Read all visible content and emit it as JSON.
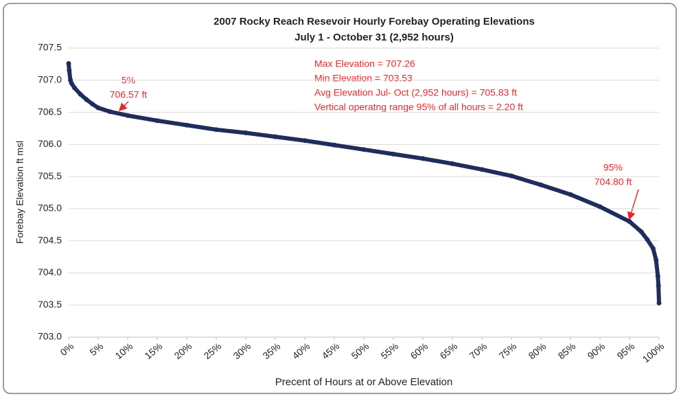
{
  "chart_data": {
    "type": "scatter",
    "title": "2007 Rocky Reach Resevoir Hourly Forebay Operating Elevations",
    "subtitle": "July 1 - October 31 (2,952 hours)",
    "xlabel": "Precent of Hours at or Above Elevation",
    "ylabel": "Forebay Elevation ft msl",
    "x": [
      0,
      0.1,
      0.3,
      0.5,
      1,
      2,
      3,
      4,
      5,
      7,
      10,
      15,
      20,
      25,
      30,
      35,
      40,
      45,
      50,
      55,
      60,
      65,
      70,
      75,
      80,
      85,
      90,
      95,
      97,
      98,
      99,
      99.5,
      99.8,
      99.9,
      100
    ],
    "values": [
      707.26,
      707.15,
      707.0,
      706.95,
      706.88,
      706.78,
      706.7,
      706.63,
      706.57,
      706.51,
      706.45,
      706.37,
      706.3,
      706.23,
      706.18,
      706.12,
      706.06,
      705.99,
      705.92,
      705.85,
      705.78,
      705.7,
      705.61,
      705.51,
      705.37,
      705.22,
      705.03,
      704.8,
      704.64,
      704.52,
      704.38,
      704.2,
      703.95,
      703.8,
      703.53
    ],
    "color": "#1f2d5c",
    "xlim": [
      0,
      100
    ],
    "xticks": [
      {
        "value": 0,
        "label": "0%"
      },
      {
        "value": 5,
        "label": "5%"
      },
      {
        "value": 10,
        "label": "10%"
      },
      {
        "value": 15,
        "label": "15%"
      },
      {
        "value": 20,
        "label": "20%"
      },
      {
        "value": 25,
        "label": "25%"
      },
      {
        "value": 30,
        "label": "30%"
      },
      {
        "value": 35,
        "label": "35%"
      },
      {
        "value": 40,
        "label": "40%"
      },
      {
        "value": 45,
        "label": "45%"
      },
      {
        "value": 50,
        "label": "50%"
      },
      {
        "value": 55,
        "label": "55%"
      },
      {
        "value": 60,
        "label": "60%"
      },
      {
        "value": 65,
        "label": "65%"
      },
      {
        "value": 70,
        "label": "70%"
      },
      {
        "value": 75,
        "label": "75%"
      },
      {
        "value": 80,
        "label": "80%"
      },
      {
        "value": 85,
        "label": "85%"
      },
      {
        "value": 90,
        "label": "90%"
      },
      {
        "value": 95,
        "label": "95%"
      },
      {
        "value": 100,
        "label": "100%"
      }
    ],
    "ylim": [
      703.0,
      707.5
    ],
    "yticks": [
      {
        "value": 703,
        "label": "703.0"
      },
      703.5,
      {
        "value": 704,
        "label": "704.0"
      },
      704.5,
      {
        "value": 705,
        "label": "705.0"
      },
      705.5,
      {
        "value": 706,
        "label": "706.0"
      },
      706.5,
      {
        "value": 707,
        "label": "707.0"
      },
      707.5
    ],
    "grid": true,
    "annotations": [
      "5%",
      "706.57 ft",
      "95%",
      "704.80 ft",
      "Max Elevation = 707.26",
      "Min Elevation = 703.53",
      "Avg Elevation Jul- Oct (2,952 hours) = 705.83 ft",
      "Vertical operatng range 95% of all hours = 2.20 ft"
    ]
  }
}
